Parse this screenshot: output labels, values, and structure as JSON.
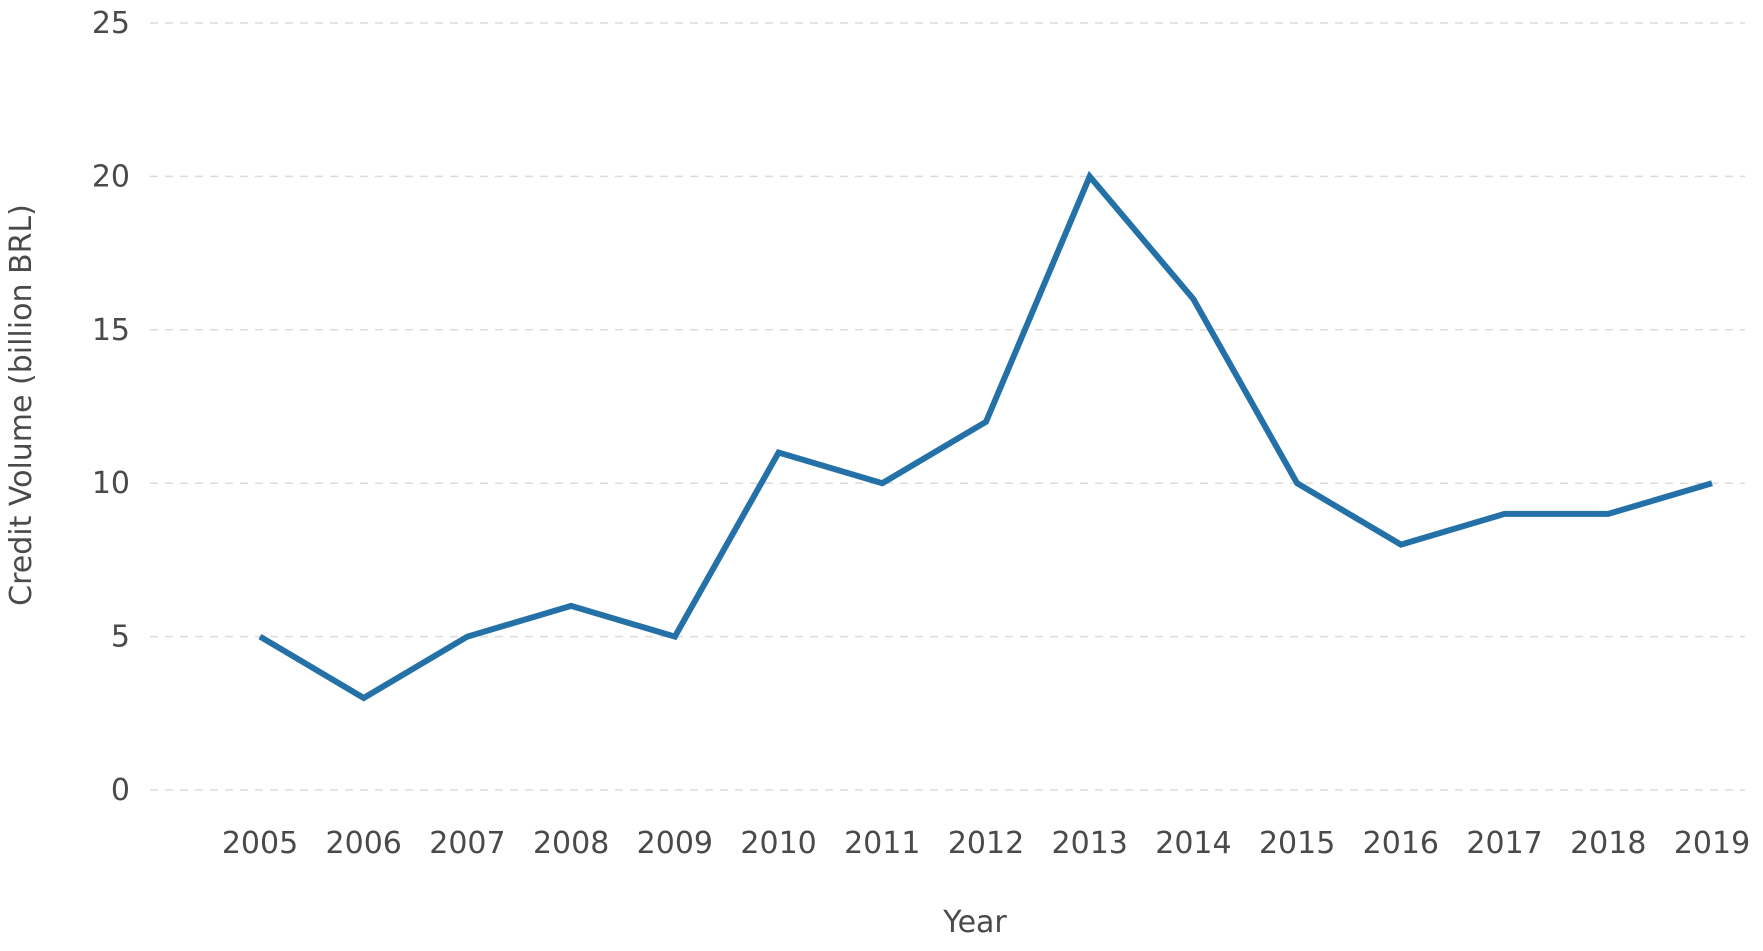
{
  "chart_data": {
    "type": "line",
    "title": "",
    "xlabel": "Year",
    "ylabel": "Credit Volume (billion BRL)",
    "x": [
      "2005",
      "2006",
      "2007",
      "2008",
      "2009",
      "2010",
      "2011",
      "2012",
      "2013",
      "2014",
      "2015",
      "2016",
      "2017",
      "2018",
      "2019"
    ],
    "series": [
      {
        "values": [
          5,
          3,
          5,
          6,
          5,
          11,
          10,
          12,
          20,
          16,
          10,
          8,
          9,
          9,
          10
        ],
        "color": "#2471a8"
      }
    ],
    "ylim": [
      0,
      25
    ],
    "yticks": [
      0,
      5,
      10,
      15,
      20,
      25
    ],
    "grid": "horizontal-dashed",
    "legend": "none"
  }
}
